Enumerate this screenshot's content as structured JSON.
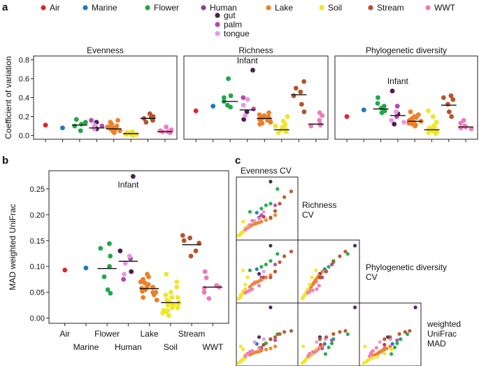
{
  "chart_data": {
    "colors": {
      "Air": "#e0242b",
      "Marine": "#1b7ab8",
      "Flower": "#20a84a",
      "Human": "#8f3d96",
      "gut": "#4a1f52",
      "palm": "#b04bb6",
      "tongue": "#e59ae0",
      "Lake": "#ef7f26",
      "Soil": "#f0e528",
      "Stream": "#b5532a",
      "WWT": "#ee7bb8"
    },
    "legend": {
      "entries": [
        "Air",
        "Marine",
        "Flower",
        "Human",
        "Lake",
        "Soil",
        "Stream",
        "WWT"
      ],
      "sub_entries": [
        "gut",
        "palm",
        "tongue"
      ]
    },
    "panel_a": {
      "letter": "a",
      "type": "scatter",
      "ylabel": "Coefficient of variation",
      "ylim": [
        -0.04,
        0.84
      ],
      "yticks": [
        "0.0",
        "0.2",
        "0.4",
        "0.6",
        "0.8"
      ],
      "categories": [
        "Air",
        "Marine",
        "Flower",
        "Human",
        "Lake",
        "Soil",
        "Stream",
        "WWT"
      ],
      "facets": [
        {
          "title": "Evenness",
          "annotation": "",
          "medians": [
            null,
            null,
            0.11,
            0.08,
            0.07,
            0.02,
            0.18,
            0.04
          ],
          "points": {
            "Air": [
              0.11
            ],
            "Marine": [
              0.08
            ],
            "Flower": [
              0.05,
              0.1,
              0.12,
              0.14,
              0.17
            ],
            "Human": [
              {
                "s": "gut",
                "v": 0.14
              },
              {
                "s": "gut",
                "v": 0.09
              },
              {
                "s": "gut",
                "v": 0.07
              },
              {
                "s": "palm",
                "v": 0.16
              },
              {
                "s": "palm",
                "v": 0.1
              },
              {
                "s": "tongue",
                "v": 0.07
              },
              {
                "s": "tongue",
                "v": 0.11
              }
            ],
            "Lake": [
              0.03,
              0.05,
              0.06,
              0.07,
              0.08,
              0.09,
              0.1,
              0.12,
              0.14,
              0.16,
              0.05,
              0.07,
              0.09,
              0.04
            ],
            "Soil": [
              0.0,
              0.01,
              0.01,
              0.02,
              0.02,
              0.03,
              0.03,
              0.01,
              0.04,
              0.02,
              0.01,
              0.02
            ],
            "Stream": [
              0.14,
              0.16,
              0.18,
              0.2,
              0.23,
              0.19
            ],
            "WWT": [
              0.03,
              0.04,
              0.05,
              0.06,
              0.09,
              0.04
            ]
          }
        },
        {
          "title": "Richness",
          "annotation": "Infant",
          "medians": [
            null,
            null,
            0.36,
            0.27,
            0.18,
            0.06,
            0.43,
            0.12
          ],
          "points": {
            "Air": [
              0.26
            ],
            "Marine": [
              0.31
            ],
            "Flower": [
              0.32,
              0.36,
              0.4,
              0.42,
              0.3,
              0.6
            ],
            "Human": [
              {
                "s": "gut",
                "v": 0.69
              },
              {
                "s": "gut",
                "v": 0.25
              },
              {
                "s": "gut",
                "v": 0.17
              },
              {
                "s": "palm",
                "v": 0.4
              },
              {
                "s": "palm",
                "v": 0.28
              },
              {
                "s": "tongue",
                "v": 0.21
              },
              {
                "s": "tongue",
                "v": 0.32
              },
              {
                "s": "tongue",
                "v": 0.38
              }
            ],
            "Lake": [
              0.12,
              0.14,
              0.16,
              0.17,
              0.18,
              0.19,
              0.2,
              0.22,
              0.24,
              0.15,
              0.13,
              0.21,
              0.17,
              0.19
            ],
            "Soil": [
              0.03,
              0.05,
              0.06,
              0.07,
              0.08,
              0.1,
              0.12,
              0.15,
              0.2,
              0.04,
              0.05,
              0.07,
              0.06,
              0.09
            ],
            "Stream": [
              0.25,
              0.33,
              0.42,
              0.5,
              0.57,
              0.46
            ],
            "WWT": [
              0.1,
              0.12,
              0.16,
              0.21,
              0.24,
              0.11
            ]
          }
        },
        {
          "title": "Phylogenetic diversity",
          "annotation": "Infant",
          "medians": [
            null,
            null,
            0.28,
            0.21,
            0.15,
            0.06,
            0.32,
            0.09
          ],
          "points": {
            "Air": [
              0.2
            ],
            "Marine": [
              0.27
            ],
            "Flower": [
              0.26,
              0.29,
              0.31,
              0.34,
              0.4,
              0.24
            ],
            "Human": [
              {
                "s": "gut",
                "v": 0.47
              },
              {
                "s": "gut",
                "v": 0.23
              },
              {
                "s": "gut",
                "v": 0.12
              },
              {
                "s": "palm",
                "v": 0.31
              },
              {
                "s": "palm",
                "v": 0.2
              },
              {
                "s": "tongue",
                "v": 0.16
              },
              {
                "s": "tongue",
                "v": 0.25
              },
              {
                "s": "tongue",
                "v": 0.14
              }
            ],
            "Lake": [
              0.1,
              0.12,
              0.14,
              0.15,
              0.16,
              0.17,
              0.18,
              0.2,
              0.22,
              0.25,
              0.13,
              0.11,
              0.19,
              0.15
            ],
            "Soil": [
              0.02,
              0.04,
              0.05,
              0.06,
              0.08,
              0.1,
              0.14,
              0.2,
              0.26,
              0.03,
              0.07,
              0.05,
              0.04,
              0.09
            ],
            "Stream": [
              0.2,
              0.25,
              0.33,
              0.38,
              0.42,
              0.4
            ],
            "WWT": [
              0.07,
              0.08,
              0.09,
              0.1,
              0.13,
              0.16
            ]
          }
        }
      ]
    },
    "panel_b": {
      "letter": "b",
      "type": "scatter",
      "ylabel": "MAD weighted UniFrac",
      "ylim": [
        -0.01,
        0.285
      ],
      "yticks": [
        "0.00",
        "0.05",
        "0.10",
        "0.15",
        "0.20",
        "0.25"
      ],
      "categories": [
        "Air",
        "Marine",
        "Flower",
        "Human",
        "Lake",
        "Soil",
        "Stream",
        "WWT"
      ],
      "xlabels_top": [
        "Air",
        "Flower",
        "Lake",
        "Stream"
      ],
      "xlabels_bottom": [
        "Marine",
        "Human",
        "Soil",
        "WWT"
      ],
      "annotation": "Infant",
      "medians": [
        null,
        null,
        0.096,
        0.11,
        0.057,
        0.03,
        0.142,
        0.06
      ],
      "points": {
        "Air": [
          0.093
        ],
        "Marine": [
          0.097
        ],
        "Flower": [
          0.048,
          0.055,
          0.08,
          0.1,
          0.12,
          0.135,
          0.144
        ],
        "Human": [
          {
            "s": "gut",
            "v": 0.274
          },
          {
            "s": "gut",
            "v": 0.13
          },
          {
            "s": "gut",
            "v": 0.09
          },
          {
            "s": "palm",
            "v": 0.115
          },
          {
            "s": "palm",
            "v": 0.075
          },
          {
            "s": "tongue",
            "v": 0.106
          },
          {
            "s": "tongue",
            "v": 0.12
          },
          {
            "s": "tongue",
            "v": 0.085
          }
        ],
        "Lake": [
          0.04,
          0.045,
          0.05,
          0.055,
          0.058,
          0.06,
          0.065,
          0.07,
          0.075,
          0.085,
          0.05,
          0.06,
          0.068,
          0.052,
          0.035,
          0.08
        ],
        "Soil": [
          0.005,
          0.01,
          0.015,
          0.02,
          0.025,
          0.03,
          0.035,
          0.04,
          0.05,
          0.06,
          0.07,
          0.085,
          0.02,
          0.03,
          0.025,
          0.015,
          0.04,
          0.045,
          0.012,
          0.028
        ],
        "Stream": [
          0.12,
          0.13,
          0.145,
          0.155,
          0.16,
          0.15
        ],
        "WWT": [
          0.038,
          0.05,
          0.058,
          0.063,
          0.078,
          0.09,
          0.06
        ]
      }
    },
    "panel_c": {
      "letter": "c",
      "type": "scatter",
      "variables": [
        "Evenness CV",
        "Richness CV",
        "Phylogenetic diversity CV",
        "weighted UniFrac MAD"
      ],
      "diagonal_labels": [
        [
          "Evenness CV"
        ],
        [
          "Richness",
          "CV"
        ],
        [
          "Phylogenetic diversity",
          "CV"
        ],
        [
          "weighted",
          "UniFrac",
          "MAD"
        ]
      ],
      "points": [
        {
          "g": "Air",
          "e": 0.11,
          "r": 0.26,
          "p": 0.2,
          "u": 0.093
        },
        {
          "g": "Marine",
          "e": 0.08,
          "r": 0.31,
          "p": 0.27,
          "u": 0.097
        },
        {
          "g": "Flower",
          "e": 0.05,
          "r": 0.32,
          "p": 0.26,
          "u": 0.048
        },
        {
          "g": "Flower",
          "e": 0.1,
          "r": 0.36,
          "p": 0.29,
          "u": 0.08
        },
        {
          "g": "Flower",
          "e": 0.12,
          "r": 0.4,
          "p": 0.31,
          "u": 0.1
        },
        {
          "g": "Flower",
          "e": 0.14,
          "r": 0.42,
          "p": 0.34,
          "u": 0.12
        },
        {
          "g": "Flower",
          "e": 0.17,
          "r": 0.6,
          "p": 0.4,
          "u": 0.144
        },
        {
          "g": "gut",
          "e": 0.14,
          "r": 0.69,
          "p": 0.47,
          "u": 0.274
        },
        {
          "g": "gut",
          "e": 0.09,
          "r": 0.25,
          "p": 0.23,
          "u": 0.13
        },
        {
          "g": "palm",
          "e": 0.16,
          "r": 0.4,
          "p": 0.31,
          "u": 0.115
        },
        {
          "g": "palm",
          "e": 0.1,
          "r": 0.28,
          "p": 0.2,
          "u": 0.075
        },
        {
          "g": "tongue",
          "e": 0.07,
          "r": 0.21,
          "p": 0.16,
          "u": 0.106
        },
        {
          "g": "tongue",
          "e": 0.11,
          "r": 0.32,
          "p": 0.25,
          "u": 0.12
        },
        {
          "g": "Lake",
          "e": 0.03,
          "r": 0.12,
          "p": 0.1,
          "u": 0.04
        },
        {
          "g": "Lake",
          "e": 0.05,
          "r": 0.14,
          "p": 0.12,
          "u": 0.045
        },
        {
          "g": "Lake",
          "e": 0.06,
          "r": 0.16,
          "p": 0.14,
          "u": 0.05
        },
        {
          "g": "Lake",
          "e": 0.07,
          "r": 0.17,
          "p": 0.15,
          "u": 0.055
        },
        {
          "g": "Lake",
          "e": 0.08,
          "r": 0.18,
          "p": 0.16,
          "u": 0.058
        },
        {
          "g": "Lake",
          "e": 0.09,
          "r": 0.19,
          "p": 0.17,
          "u": 0.06
        },
        {
          "g": "Lake",
          "e": 0.1,
          "r": 0.2,
          "p": 0.18,
          "u": 0.065
        },
        {
          "g": "Lake",
          "e": 0.12,
          "r": 0.22,
          "p": 0.2,
          "u": 0.07
        },
        {
          "g": "Lake",
          "e": 0.14,
          "r": 0.24,
          "p": 0.22,
          "u": 0.075
        },
        {
          "g": "Lake",
          "e": 0.16,
          "r": 0.28,
          "p": 0.25,
          "u": 0.085
        },
        {
          "g": "Soil",
          "e": 0.0,
          "r": 0.03,
          "p": 0.02,
          "u": 0.005
        },
        {
          "g": "Soil",
          "e": 0.01,
          "r": 0.05,
          "p": 0.04,
          "u": 0.01
        },
        {
          "g": "Soil",
          "e": 0.01,
          "r": 0.06,
          "p": 0.05,
          "u": 0.015
        },
        {
          "g": "Soil",
          "e": 0.02,
          "r": 0.07,
          "p": 0.06,
          "u": 0.02
        },
        {
          "g": "Soil",
          "e": 0.02,
          "r": 0.08,
          "p": 0.08,
          "u": 0.025
        },
        {
          "g": "Soil",
          "e": 0.03,
          "r": 0.1,
          "p": 0.1,
          "u": 0.03
        },
        {
          "g": "Soil",
          "e": 0.03,
          "r": 0.12,
          "p": 0.14,
          "u": 0.035
        },
        {
          "g": "Soil",
          "e": 0.04,
          "r": 0.15,
          "p": 0.2,
          "u": 0.05
        },
        {
          "g": "Soil",
          "e": 0.02,
          "r": 0.2,
          "p": 0.26,
          "u": 0.07
        },
        {
          "g": "Soil",
          "e": 0.01,
          "r": 0.04,
          "p": 0.03,
          "u": 0.085
        },
        {
          "g": "Stream",
          "e": 0.14,
          "r": 0.25,
          "p": 0.2,
          "u": 0.12
        },
        {
          "g": "Stream",
          "e": 0.16,
          "r": 0.33,
          "p": 0.25,
          "u": 0.13
        },
        {
          "g": "Stream",
          "e": 0.18,
          "r": 0.42,
          "p": 0.33,
          "u": 0.145
        },
        {
          "g": "Stream",
          "e": 0.2,
          "r": 0.5,
          "p": 0.38,
          "u": 0.155
        },
        {
          "g": "Stream",
          "e": 0.23,
          "r": 0.57,
          "p": 0.42,
          "u": 0.16
        },
        {
          "g": "WWT",
          "e": 0.03,
          "r": 0.1,
          "p": 0.07,
          "u": 0.038
        },
        {
          "g": "WWT",
          "e": 0.04,
          "r": 0.12,
          "p": 0.08,
          "u": 0.05
        },
        {
          "g": "WWT",
          "e": 0.05,
          "r": 0.16,
          "p": 0.09,
          "u": 0.058
        },
        {
          "g": "WWT",
          "e": 0.06,
          "r": 0.21,
          "p": 0.1,
          "u": 0.063
        },
        {
          "g": "WWT",
          "e": 0.09,
          "r": 0.24,
          "p": 0.13,
          "u": 0.078
        }
      ]
    }
  }
}
